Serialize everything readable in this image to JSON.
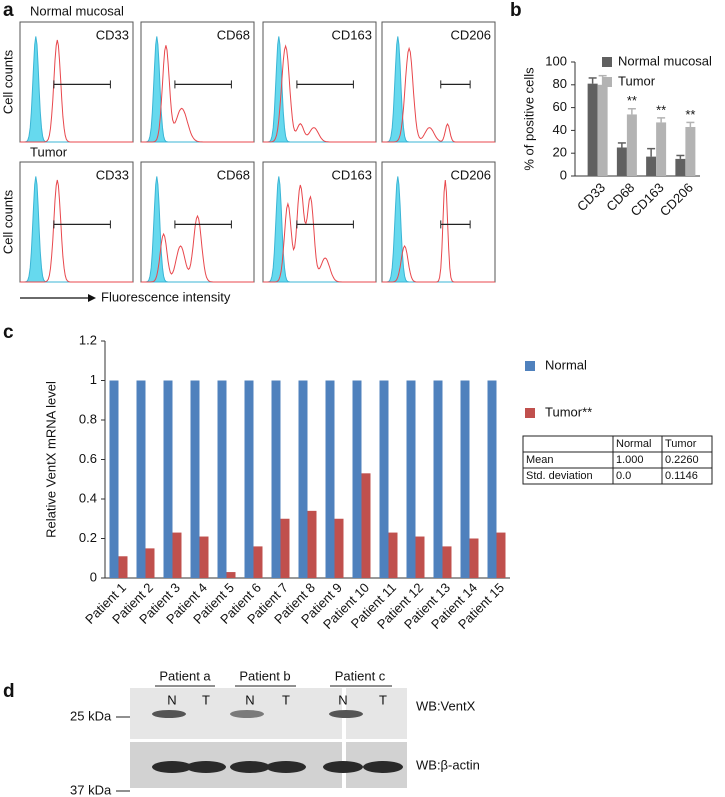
{
  "panel_letters": [
    "a",
    "b",
    "c",
    "d"
  ],
  "panel_a": {
    "rows": [
      "Normal mucosal",
      "Tumor"
    ],
    "y_label": "Cell counts",
    "markers": [
      [
        "CD33",
        "CD68",
        "CD163",
        "CD206"
      ],
      [
        "CD33",
        "CD68",
        "CD163",
        "CD206"
      ]
    ],
    "x_label": "Fluorescence intensity"
  },
  "chart_data": [
    {
      "type": "bar",
      "ylabel": "% of positive cells",
      "categories": [
        "CD33",
        "CD68",
        "CD163",
        "CD206"
      ],
      "series": [
        {
          "name": "Normal mucosal",
          "color": "#606060",
          "values": [
            81,
            25,
            17,
            15
          ],
          "errors": [
            5,
            4,
            7,
            3
          ]
        },
        {
          "name": "Tumor",
          "color": "#b3b3b3",
          "values": [
            80,
            54,
            47,
            43
          ],
          "errors": [
            8,
            5,
            4,
            4
          ],
          "significance": [
            null,
            "**",
            "**",
            "**"
          ]
        }
      ],
      "ylim": [
        0,
        100
      ],
      "yticks": [
        0,
        20,
        40,
        60,
        80,
        100
      ],
      "legend": "upper right"
    },
    {
      "type": "bar",
      "ylabel": "Relative VentX mRNA level",
      "categories": [
        "Patient 1",
        "Patient 2",
        "Patient 3",
        "Patient 4",
        "Patient 5",
        "Patient 6",
        "Patient 7",
        "Patient 8",
        "Patient 9",
        "Patient 10",
        "Patient 11",
        "Patient 12",
        "Patient 13",
        "Patient 14",
        "Patient 15"
      ],
      "series": [
        {
          "name": "Normal",
          "color": "#4f81bd",
          "values": [
            1,
            1,
            1,
            1,
            1,
            1,
            1,
            1,
            1,
            1,
            1,
            1,
            1,
            1,
            1
          ]
        },
        {
          "name": "Tumor**",
          "color": "#c0504d",
          "values": [
            0.11,
            0.15,
            0.23,
            0.21,
            0.03,
            0.16,
            0.3,
            0.34,
            0.3,
            0.53,
            0.23,
            0.21,
            0.16,
            0.2,
            0.23
          ]
        }
      ],
      "ylim": [
        0,
        1.2
      ],
      "yticks": [
        0,
        0.2,
        0.4,
        0.6,
        0.8,
        1,
        1.2
      ],
      "legend": "right",
      "table": {
        "columns": [
          "Normal",
          "Tumor"
        ],
        "rows": [
          [
            "Mean",
            "1.000",
            "0.2260"
          ],
          [
            "Std. deviation",
            "0.0",
            "0.1146"
          ]
        ]
      }
    }
  ],
  "panel_d": {
    "patients": [
      "Patient a",
      "Patient b",
      "Patient c"
    ],
    "lanes": [
      "N",
      "T",
      "N",
      "T",
      "N",
      "T"
    ],
    "markers": [
      "25 kDa",
      "37 kDa"
    ],
    "probes": [
      "WB:VentX",
      "WB:β-actin"
    ]
  }
}
